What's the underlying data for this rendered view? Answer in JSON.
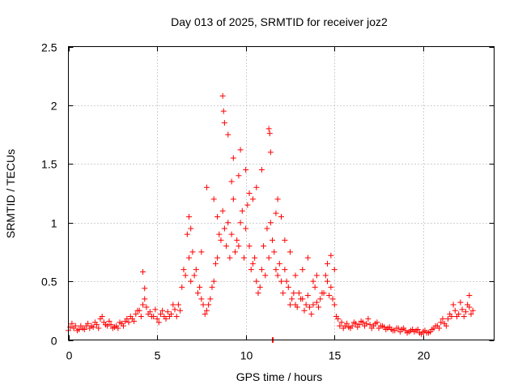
{
  "chart_data": {
    "type": "scatter",
    "title": "Day 013 of 2025, SRMTID for receiver joz2",
    "xlabel": "GPS time / hours",
    "ylabel": "SRMTID / TECUs",
    "xlim": [
      0,
      24
    ],
    "ylim": [
      0,
      2.5
    ],
    "xticks": [
      0,
      5,
      10,
      15,
      20
    ],
    "yticks": [
      0,
      0.5,
      1,
      1.5,
      2,
      2.5
    ],
    "xtick_labels": [
      "0",
      "5",
      "10",
      "15",
      "20"
    ],
    "ytick_labels": [
      "0",
      "0.5",
      "1",
      "1.5",
      "2",
      "2.5"
    ],
    "grid": true,
    "marker": "+",
    "color": "#ff0000",
    "series": [
      {
        "name": "SRMTID",
        "x": [
          0.0,
          0.2,
          0.4,
          0.6,
          0.8,
          1.0,
          1.2,
          1.4,
          1.6,
          1.8,
          2.0,
          2.2,
          2.4,
          2.6,
          2.8,
          3.0,
          3.2,
          3.4,
          3.6,
          3.8,
          4.0,
          4.2,
          4.4,
          4.6,
          4.8,
          5.0,
          5.2,
          5.4,
          5.6,
          5.8,
          6.0,
          6.2,
          6.4,
          6.6,
          6.8,
          7.0,
          7.2,
          7.4,
          7.6,
          7.8,
          8.0,
          8.2,
          8.4,
          8.6,
          8.8,
          9.0,
          9.2,
          9.4,
          9.6,
          9.8,
          10.0,
          10.2,
          10.4,
          10.6,
          10.8,
          11.0,
          11.2,
          11.4,
          11.6,
          11.8,
          12.0,
          12.2,
          12.4,
          12.6,
          12.8,
          13.0,
          13.2,
          13.4,
          13.6,
          13.8,
          14.0,
          14.2,
          14.4,
          14.6,
          14.8,
          15.0,
          15.2,
          15.4,
          15.6,
          15.8,
          16.0,
          16.2,
          16.4,
          16.6,
          16.8,
          17.0,
          17.2,
          17.4,
          17.6,
          17.8,
          18.0,
          18.2,
          18.4,
          18.6,
          18.8,
          19.0,
          19.2,
          19.4,
          19.6,
          19.8,
          20.0,
          20.2,
          20.4,
          20.6,
          20.8,
          21.0,
          21.2,
          21.4,
          21.6,
          21.8,
          22.0,
          22.2,
          22.4,
          22.6,
          22.8,
          0.1,
          0.3,
          0.5,
          0.7,
          0.9,
          1.1,
          1.3,
          1.5,
          1.7,
          1.9,
          2.1,
          2.3,
          2.5,
          2.7,
          2.9,
          3.1,
          3.3,
          3.5,
          3.7,
          3.9,
          4.1,
          4.3,
          4.5,
          4.7,
          4.9,
          5.1,
          5.3,
          5.5,
          5.7,
          5.9,
          6.1,
          6.3,
          6.5,
          6.7,
          6.9,
          7.1,
          7.3,
          7.5,
          7.7,
          7.9,
          8.1,
          8.3,
          8.5,
          8.7,
          8.9,
          9.1,
          9.3,
          9.5,
          9.7,
          9.9,
          10.1,
          10.3,
          10.5,
          10.7,
          10.9,
          11.1,
          11.3,
          11.5,
          11.7,
          11.9,
          12.1,
          12.3,
          12.5,
          12.7,
          12.9,
          13.1,
          13.3,
          13.5,
          13.7,
          13.9,
          14.1,
          14.3,
          14.5,
          14.7,
          14.9,
          15.1,
          15.3,
          15.5,
          15.7,
          15.9,
          16.1,
          16.3,
          16.5,
          16.7,
          16.9,
          17.1,
          17.3,
          17.5,
          17.7,
          17.9,
          18.1,
          18.3,
          18.5,
          18.7,
          18.9,
          19.1,
          19.3,
          19.5,
          19.7,
          19.9,
          20.1,
          20.3,
          20.5,
          20.7,
          20.9,
          21.1,
          21.3,
          21.5,
          21.7,
          21.9,
          22.1,
          22.3,
          22.5,
          22.7,
          4.2,
          4.3,
          6.8,
          6.9,
          8.7,
          8.75,
          8.8,
          9.0,
          9.3,
          9.6,
          9.7,
          10.0,
          10.2,
          10.6,
          11.3,
          11.35,
          11.4,
          11.5,
          11.55,
          11.8,
          12.0,
          12.5,
          13.2,
          14.6,
          14.8,
          15.0,
          14.0,
          13.5,
          7.5,
          7.8,
          8.2,
          8.4,
          9.2,
          10.4,
          10.9,
          11.7,
          12.2,
          12.8,
          13.8,
          22.6
        ],
        "y": [
          0.08,
          0.14,
          0.12,
          0.09,
          0.1,
          0.12,
          0.1,
          0.11,
          0.13,
          0.18,
          0.15,
          0.12,
          0.13,
          0.11,
          0.1,
          0.14,
          0.16,
          0.15,
          0.18,
          0.22,
          0.25,
          0.3,
          0.28,
          0.24,
          0.2,
          0.18,
          0.22,
          0.2,
          0.24,
          0.22,
          0.26,
          0.3,
          0.45,
          0.55,
          0.7,
          0.75,
          0.6,
          0.45,
          0.3,
          0.25,
          0.35,
          0.5,
          0.7,
          0.85,
          0.95,
          1.0,
          0.9,
          0.75,
          0.8,
          1.1,
          0.95,
          0.8,
          0.65,
          0.5,
          0.45,
          0.8,
          0.95,
          1.0,
          0.75,
          0.55,
          0.5,
          0.6,
          0.45,
          0.35,
          0.3,
          0.4,
          0.35,
          0.3,
          0.28,
          0.3,
          0.32,
          0.35,
          0.4,
          0.5,
          0.45,
          0.3,
          0.18,
          0.15,
          0.12,
          0.11,
          0.12,
          0.14,
          0.13,
          0.15,
          0.14,
          0.13,
          0.12,
          0.15,
          0.12,
          0.11,
          0.1,
          0.09,
          0.08,
          0.1,
          0.09,
          0.08,
          0.07,
          0.09,
          0.08,
          0.06,
          0.07,
          0.06,
          0.07,
          0.1,
          0.12,
          0.15,
          0.14,
          0.18,
          0.2,
          0.25,
          0.22,
          0.26,
          0.24,
          0.28,
          0.25,
          0.11,
          0.1,
          0.08,
          0.12,
          0.09,
          0.14,
          0.12,
          0.15,
          0.1,
          0.2,
          0.13,
          0.16,
          0.1,
          0.12,
          0.15,
          0.12,
          0.18,
          0.2,
          0.16,
          0.25,
          0.2,
          0.35,
          0.22,
          0.2,
          0.26,
          0.15,
          0.25,
          0.18,
          0.2,
          0.3,
          0.2,
          0.25,
          0.6,
          0.9,
          0.5,
          0.55,
          0.4,
          0.35,
          0.22,
          0.3,
          0.45,
          0.65,
          0.9,
          1.1,
          0.8,
          0.7,
          1.2,
          0.85,
          1.0,
          0.7,
          1.15,
          0.6,
          0.7,
          0.4,
          0.6,
          0.55,
          0.7,
          0.85,
          0.6,
          0.65,
          0.4,
          0.5,
          0.3,
          0.4,
          0.28,
          0.35,
          0.25,
          0.38,
          0.22,
          0.45,
          0.28,
          0.4,
          0.55,
          0.38,
          0.35,
          0.2,
          0.12,
          0.1,
          0.14,
          0.1,
          0.15,
          0.11,
          0.16,
          0.12,
          0.18,
          0.1,
          0.14,
          0.1,
          0.12,
          0.09,
          0.11,
          0.08,
          0.1,
          0.07,
          0.1,
          0.06,
          0.08,
          0.07,
          0.09,
          0.05,
          0.08,
          0.06,
          0.09,
          0.12,
          0.1,
          0.18,
          0.12,
          0.22,
          0.3,
          0.2,
          0.32,
          0.2,
          0.3,
          0.22,
          0.58,
          0.44,
          1.05,
          0.95,
          2.08,
          1.95,
          1.85,
          1.75,
          1.55,
          1.4,
          1.62,
          1.45,
          1.25,
          1.3,
          1.8,
          1.76,
          1.6,
          0.0,
          0.0,
          1.2,
          1.05,
          0.75,
          0.6,
          0.65,
          0.72,
          0.6,
          0.55,
          0.7,
          0.75,
          1.3,
          1.2,
          1.05,
          1.35,
          1.2,
          1.45,
          1.08,
          0.85,
          0.55,
          0.5,
          0.38
        ]
      }
    ]
  }
}
